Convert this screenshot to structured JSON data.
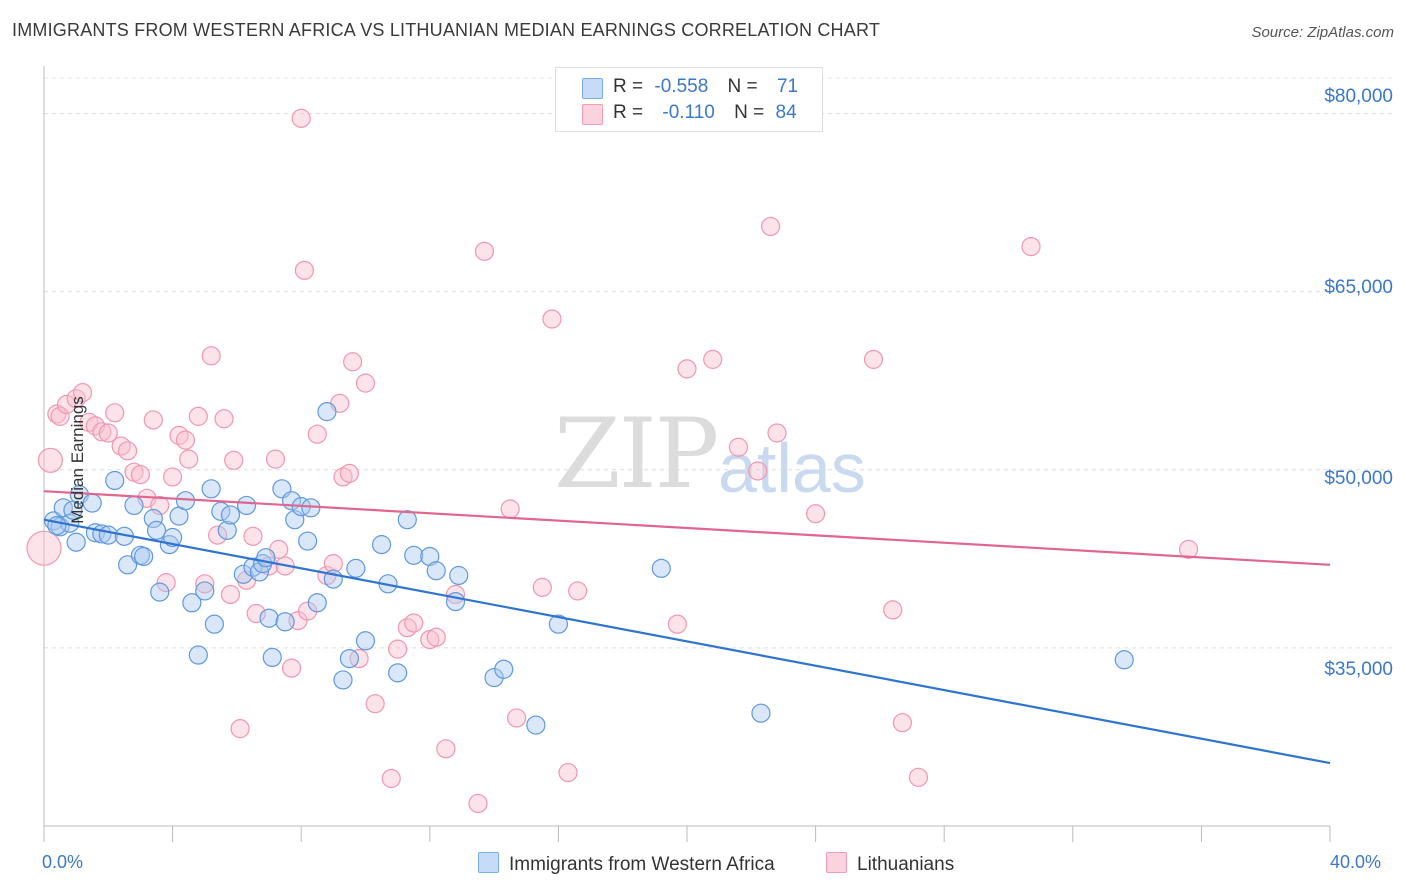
{
  "title": "IMMIGRANTS FROM WESTERN AFRICA VS LITHUANIAN MEDIAN EARNINGS CORRELATION CHART",
  "source": "Source: ZipAtlas.com",
  "watermark": {
    "zip": "ZIP",
    "atlas": "atlas"
  },
  "legend": {
    "series1": {
      "r_label": "R =",
      "r_value": "-0.558",
      "n_label": "N =",
      "n_value": "71",
      "color": "#7aaee8"
    },
    "series2": {
      "r_label": "R =",
      "r_value": "-0.110",
      "n_label": "N =",
      "n_value": "84",
      "color": "#f19bb4"
    }
  },
  "bottom_legend": {
    "series1": "Immigrants from Western Africa",
    "series2": "Lithuanians"
  },
  "x_ticks": {
    "min": "0.0%",
    "max": "40.0%"
  },
  "y_ticks": [
    "$80,000",
    "$65,000",
    "$50,000",
    "$35,000"
  ],
  "y_axis_label": "Median Earnings",
  "chart_data": {
    "type": "scatter",
    "xlabel": "",
    "ylabel": "Median Earnings",
    "xlim": [
      0,
      40
    ],
    "ylim": [
      20000,
      83000
    ],
    "y_ticks": [
      35000,
      50000,
      65000,
      80000
    ],
    "grid": true,
    "legend_placement": "top-center",
    "series": [
      {
        "name": "Immigrants from Western Africa",
        "color": "#7aaee8",
        "line_color": "#2f74d0",
        "r": -0.558,
        "n": 71,
        "trend": {
          "x": [
            0,
            40
          ],
          "y": [
            45800,
            25300
          ]
        },
        "points": [
          [
            0.3,
            45700
          ],
          [
            0.5,
            45200
          ],
          [
            0.6,
            46800
          ],
          [
            0.8,
            45500
          ],
          [
            0.9,
            46600
          ],
          [
            1.0,
            43900
          ],
          [
            1.1,
            47900
          ],
          [
            1.5,
            47200
          ],
          [
            1.6,
            44700
          ],
          [
            1.8,
            44600
          ],
          [
            2.0,
            44500
          ],
          [
            2.2,
            49100
          ],
          [
            2.5,
            44400
          ],
          [
            2.6,
            42000
          ],
          [
            2.8,
            47000
          ],
          [
            3.0,
            42800
          ],
          [
            3.1,
            42700
          ],
          [
            3.4,
            45900
          ],
          [
            3.5,
            44900
          ],
          [
            3.6,
            39700
          ],
          [
            3.9,
            43700
          ],
          [
            4.0,
            44300
          ],
          [
            4.2,
            46100
          ],
          [
            4.4,
            47400
          ],
          [
            4.6,
            38800
          ],
          [
            4.8,
            34400
          ],
          [
            5.0,
            39800
          ],
          [
            5.2,
            48400
          ],
          [
            5.3,
            37000
          ],
          [
            5.5,
            46500
          ],
          [
            5.7,
            44900
          ],
          [
            5.8,
            46200
          ],
          [
            6.2,
            41200
          ],
          [
            6.3,
            47000
          ],
          [
            6.5,
            41800
          ],
          [
            6.7,
            41400
          ],
          [
            6.8,
            42100
          ],
          [
            6.9,
            42600
          ],
          [
            7.0,
            37500
          ],
          [
            7.1,
            34200
          ],
          [
            7.4,
            48400
          ],
          [
            7.5,
            37200
          ],
          [
            7.7,
            47400
          ],
          [
            7.8,
            45800
          ],
          [
            8.0,
            46900
          ],
          [
            8.2,
            44000
          ],
          [
            8.3,
            46800
          ],
          [
            8.5,
            38800
          ],
          [
            8.8,
            54900
          ],
          [
            9.0,
            40800
          ],
          [
            9.3,
            32300
          ],
          [
            9.5,
            34100
          ],
          [
            9.7,
            41700
          ],
          [
            10.0,
            35600
          ],
          [
            10.5,
            43700
          ],
          [
            10.7,
            40400
          ],
          [
            11.0,
            32900
          ],
          [
            11.3,
            45800
          ],
          [
            11.5,
            42800
          ],
          [
            12.0,
            42700
          ],
          [
            12.2,
            41500
          ],
          [
            12.8,
            38900
          ],
          [
            12.9,
            41100
          ],
          [
            14.0,
            32500
          ],
          [
            14.3,
            33200
          ],
          [
            15.3,
            28500
          ],
          [
            16.0,
            37000
          ],
          [
            19.2,
            41700
          ],
          [
            22.3,
            29500
          ],
          [
            33.6,
            34000
          ],
          [
            0.4,
            45300
          ]
        ]
      },
      {
        "name": "Lithuanians",
        "color": "#f19bb4",
        "line_color": "#e0668f",
        "r": -0.11,
        "n": 84,
        "trend": {
          "x": [
            0,
            40
          ],
          "y": [
            48200,
            42000
          ]
        },
        "points": [
          [
            0.0,
            43400
          ],
          [
            0.2,
            50800
          ],
          [
            0.4,
            54700
          ],
          [
            0.5,
            54500
          ],
          [
            0.7,
            55500
          ],
          [
            1.0,
            56000
          ],
          [
            1.2,
            56500
          ],
          [
            1.4,
            54000
          ],
          [
            1.6,
            53700
          ],
          [
            1.8,
            53200
          ],
          [
            2.0,
            53100
          ],
          [
            2.2,
            54800
          ],
          [
            2.4,
            52000
          ],
          [
            2.6,
            51600
          ],
          [
            2.8,
            49800
          ],
          [
            3.0,
            49600
          ],
          [
            3.2,
            47600
          ],
          [
            3.4,
            54200
          ],
          [
            3.6,
            47000
          ],
          [
            3.8,
            40500
          ],
          [
            4.0,
            49400
          ],
          [
            4.2,
            52900
          ],
          [
            4.4,
            52500
          ],
          [
            4.5,
            50900
          ],
          [
            4.8,
            54500
          ],
          [
            5.0,
            40400
          ],
          [
            5.2,
            59600
          ],
          [
            5.4,
            44500
          ],
          [
            5.6,
            54300
          ],
          [
            5.8,
            39500
          ],
          [
            5.9,
            50800
          ],
          [
            6.1,
            28200
          ],
          [
            6.3,
            40700
          ],
          [
            6.5,
            44400
          ],
          [
            6.6,
            37900
          ],
          [
            7.0,
            41900
          ],
          [
            7.2,
            50900
          ],
          [
            7.3,
            43300
          ],
          [
            7.5,
            41900
          ],
          [
            7.7,
            33300
          ],
          [
            7.9,
            37300
          ],
          [
            8.0,
            79600
          ],
          [
            8.1,
            66800
          ],
          [
            8.2,
            38100
          ],
          [
            8.5,
            53000
          ],
          [
            8.8,
            41100
          ],
          [
            9.0,
            42100
          ],
          [
            9.2,
            55600
          ],
          [
            9.3,
            49400
          ],
          [
            9.5,
            49700
          ],
          [
            9.6,
            59100
          ],
          [
            9.8,
            34100
          ],
          [
            10.0,
            57300
          ],
          [
            10.3,
            30300
          ],
          [
            10.8,
            24000
          ],
          [
            11.0,
            34900
          ],
          [
            11.3,
            36700
          ],
          [
            11.5,
            37100
          ],
          [
            12.0,
            35700
          ],
          [
            12.2,
            35900
          ],
          [
            12.5,
            26500
          ],
          [
            12.8,
            39500
          ],
          [
            13.5,
            21900
          ],
          [
            13.7,
            68400
          ],
          [
            14.5,
            46700
          ],
          [
            14.7,
            29100
          ],
          [
            15.5,
            40100
          ],
          [
            15.8,
            62700
          ],
          [
            16.3,
            24500
          ],
          [
            16.6,
            39800
          ],
          [
            19.7,
            37000
          ],
          [
            20.0,
            58500
          ],
          [
            20.8,
            59300
          ],
          [
            21.6,
            51900
          ],
          [
            22.2,
            49900
          ],
          [
            22.6,
            70500
          ],
          [
            22.8,
            53100
          ],
          [
            24.0,
            46300
          ],
          [
            25.8,
            59300
          ],
          [
            26.4,
            38200
          ],
          [
            26.7,
            28700
          ],
          [
            27.2,
            24100
          ],
          [
            30.7,
            68800
          ],
          [
            35.6,
            43300
          ]
        ]
      }
    ]
  }
}
